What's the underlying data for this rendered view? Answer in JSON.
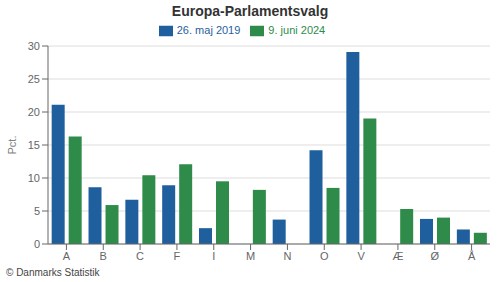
{
  "chart_data": {
    "type": "bar",
    "title": "Europa-Parlamentsvalg",
    "categories": [
      "A",
      "B",
      "C",
      "F",
      "I",
      "M",
      "N",
      "O",
      "V",
      "Æ",
      "Ø",
      "Å"
    ],
    "series": [
      {
        "name": "26. maj 2019",
        "color": "#1f5f9e",
        "values": [
          21.1,
          8.6,
          6.7,
          8.9,
          2.4,
          0.0,
          3.7,
          14.2,
          29.1,
          0.0,
          3.8,
          2.2
        ]
      },
      {
        "name": "9. juni 2024",
        "color": "#2e8b4a",
        "values": [
          16.3,
          5.9,
          10.4,
          12.1,
          9.5,
          8.2,
          0.0,
          8.5,
          19.0,
          5.3,
          4.0,
          1.7
        ]
      }
    ],
    "ylabel": "Pct.",
    "ylim": [
      0,
      30
    ],
    "yticks": [
      0,
      5,
      10,
      15,
      20,
      25,
      30
    ],
    "grid": true,
    "legend": "top",
    "annotations": [
      "© Danmarks Statistik"
    ]
  }
}
